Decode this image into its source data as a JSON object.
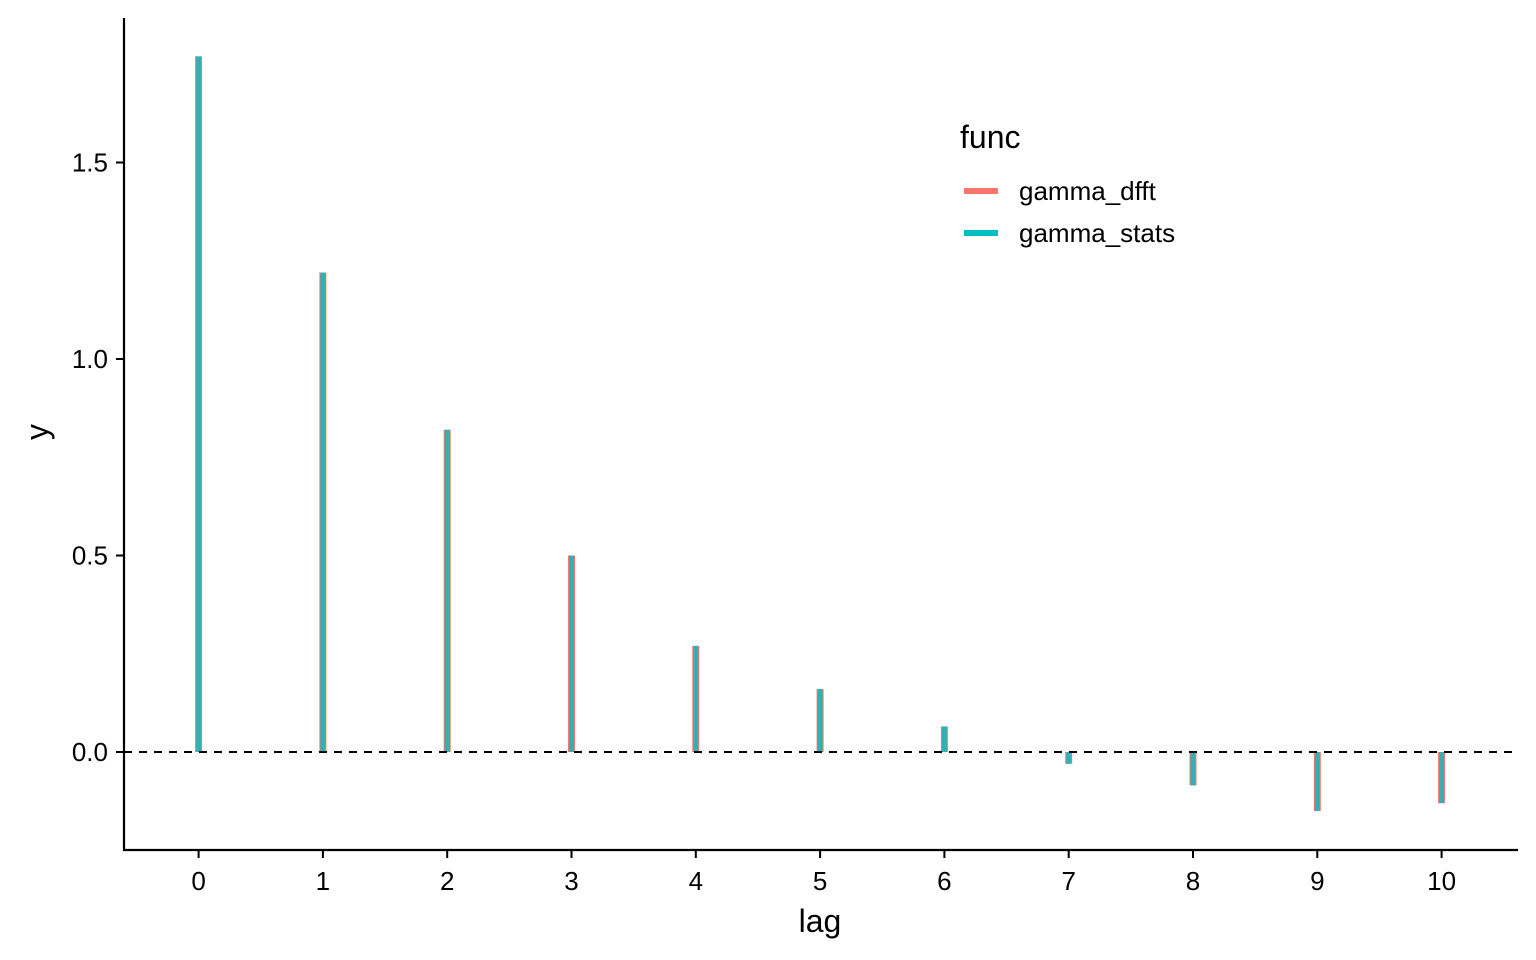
{
  "chart_data": {
    "type": "bar",
    "xlabel": "lag",
    "ylabel": "y",
    "x": [
      0,
      1,
      2,
      3,
      4,
      5,
      6,
      7,
      8,
      9,
      10
    ],
    "xlim": [
      -0.6,
      10.6
    ],
    "ylim": [
      -0.25,
      1.86
    ],
    "yticks": [
      0.0,
      0.5,
      1.0,
      1.5
    ],
    "ytick_labels": [
      "0.0",
      "0.5",
      "1.0",
      "1.5"
    ],
    "xtick_labels": [
      "0",
      "1",
      "2",
      "3",
      "4",
      "5",
      "6",
      "7",
      "8",
      "9",
      "10"
    ],
    "hline": {
      "y": 0,
      "style": "dashed",
      "color": "#000000"
    },
    "grid": false,
    "legend": {
      "title": "func",
      "placement": "top-right"
    },
    "series": [
      {
        "name": "gamma_dfft",
        "color": "#F8766D",
        "values": [
          1.77,
          1.22,
          0.82,
          0.5,
          0.27,
          0.16,
          0.065,
          -0.03,
          -0.085,
          -0.15,
          -0.13
        ]
      },
      {
        "name": "gamma_stats",
        "color": "#00BFC4",
        "values": [
          1.77,
          1.22,
          0.82,
          0.5,
          0.27,
          0.16,
          0.065,
          -0.03,
          -0.085,
          -0.15,
          -0.13
        ]
      }
    ]
  }
}
